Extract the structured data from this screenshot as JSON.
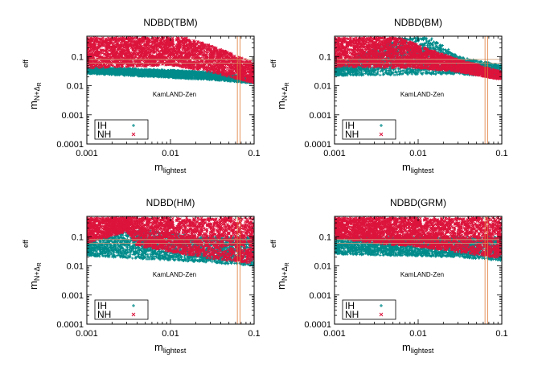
{
  "chart_data": [
    {
      "type": "scatter",
      "title": "NDBD(TBM)",
      "xlabel_main": "m",
      "xlabel_sub": "lightest",
      "ylabel_main": "m",
      "ylabel_sub": "N+Δ_R",
      "ylabel_sup": "eff",
      "x_scale": "log",
      "y_scale": "log",
      "xlim": [
        0.001,
        0.1
      ],
      "ylim": [
        0.0001,
        0.5
      ],
      "x_ticks": [
        "0.001",
        "0.01",
        "0.1"
      ],
      "y_ticks": [
        "0.0001",
        "0.001",
        "0.01",
        "0.1"
      ],
      "annotation": "KamLAND-Zen",
      "legend_position": "bottom-left",
      "series": [
        {
          "name": "IH",
          "color": "#008b8b",
          "marker": "+",
          "band_low": [
            [
              0.001,
              0.026
            ],
            [
              0.03,
              0.016
            ],
            [
              0.1,
              0.012
            ]
          ],
          "band_high": [
            [
              0.001,
              0.045
            ],
            [
              0.03,
              0.03
            ],
            [
              0.1,
              0.02
            ]
          ]
        },
        {
          "name": "NH",
          "color": "#dc143c",
          "marker": "×",
          "band_low": [
            [
              0.001,
              0.04
            ],
            [
              0.01,
              0.05
            ],
            [
              0.03,
              0.03
            ],
            [
              0.1,
              0.012
            ]
          ],
          "band_high": [
            [
              0.001,
              0.45
            ],
            [
              0.015,
              0.45
            ],
            [
              0.03,
              0.25
            ],
            [
              0.1,
              0.06
            ]
          ]
        }
      ],
      "reference_lines_y": [
        0.08,
        0.06
      ],
      "reference_lines_x": [
        0.063,
        0.068
      ]
    },
    {
      "type": "scatter",
      "title": "NDBD(BM)",
      "xlabel_main": "m",
      "xlabel_sub": "lightest",
      "ylabel_main": "m",
      "ylabel_sub": "N+Δ_R",
      "ylabel_sup": "eff",
      "x_scale": "log",
      "y_scale": "log",
      "xlim": [
        0.001,
        0.1
      ],
      "ylim": [
        0.0001,
        0.5
      ],
      "x_ticks": [
        "0.001",
        "0.01",
        "0.1"
      ],
      "y_ticks": [
        "0.0001",
        "0.001",
        "0.01",
        "0.1"
      ],
      "annotation": "KamLAND-Zen",
      "legend_position": "bottom-left",
      "series": [
        {
          "name": "IH",
          "color": "#008b8b",
          "marker": "+",
          "band_low": [
            [
              0.001,
              0.022
            ],
            [
              0.03,
              0.025
            ],
            [
              0.1,
              0.02
            ]
          ],
          "band_high": [
            [
              0.001,
              0.045
            ],
            [
              0.006,
              0.45
            ],
            [
              0.015,
              0.45
            ],
            [
              0.03,
              0.1
            ],
            [
              0.1,
              0.05
            ]
          ]
        },
        {
          "name": "NH",
          "color": "#dc143c",
          "marker": "×",
          "band_low": [
            [
              0.001,
              0.045
            ],
            [
              0.01,
              0.04
            ],
            [
              0.03,
              0.03
            ],
            [
              0.1,
              0.016
            ]
          ],
          "band_high": [
            [
              0.001,
              0.45
            ],
            [
              0.006,
              0.45
            ],
            [
              0.01,
              0.25
            ],
            [
              0.03,
              0.08
            ],
            [
              0.1,
              0.03
            ]
          ]
        }
      ],
      "reference_lines_y": [
        0.08,
        0.06
      ],
      "reference_lines_x": [
        0.063,
        0.068
      ]
    },
    {
      "type": "scatter",
      "title": "NDBD(HM)",
      "xlabel_main": "m",
      "xlabel_sub": "lightest",
      "ylabel_main": "m",
      "ylabel_sub": "N+Δ_R",
      "ylabel_sup": "eff",
      "x_scale": "log",
      "y_scale": "log",
      "xlim": [
        0.001,
        0.1
      ],
      "ylim": [
        0.0001,
        0.5
      ],
      "x_ticks": [
        "0.001",
        "0.01",
        "0.1"
      ],
      "y_ticks": [
        "0.0001",
        "0.001",
        "0.01",
        "0.1"
      ],
      "annotation": "KamLAND-Zen",
      "legend_position": "bottom-left",
      "series": [
        {
          "name": "IH",
          "color": "#008b8b",
          "marker": "+",
          "band_low": [
            [
              0.001,
              0.022
            ],
            [
              0.03,
              0.013
            ],
            [
              0.1,
              0.01
            ]
          ],
          "band_high": [
            [
              0.001,
              0.06
            ],
            [
              0.003,
              0.2
            ],
            [
              0.03,
              0.1
            ],
            [
              0.1,
              0.1
            ]
          ]
        },
        {
          "name": "NH",
          "color": "#dc143c",
          "marker": "×",
          "band_low": [
            [
              0.001,
              0.06
            ],
            [
              0.003,
              0.15
            ],
            [
              0.004,
              0.05
            ],
            [
              0.01,
              0.03
            ],
            [
              0.03,
              0.018
            ],
            [
              0.1,
              0.012
            ]
          ],
          "band_high": [
            [
              0.001,
              0.45
            ],
            [
              0.1,
              0.45
            ]
          ]
        }
      ],
      "reference_lines_y": [
        0.08,
        0.06
      ],
      "reference_lines_x": [
        0.063,
        0.068
      ]
    },
    {
      "type": "scatter",
      "title": "NDBD(GRM)",
      "xlabel_main": "m",
      "xlabel_sub": "lightest",
      "ylabel_main": "m",
      "ylabel_sub": "N+Δ_R",
      "ylabel_sup": "eff",
      "x_scale": "log",
      "y_scale": "log",
      "xlim": [
        0.001,
        0.1
      ],
      "ylim": [
        0.0001,
        0.5
      ],
      "x_ticks": [
        "0.001",
        "0.01",
        "0.1"
      ],
      "y_ticks": [
        "0.0001",
        "0.001",
        "0.01",
        "0.1"
      ],
      "annotation": "KamLAND-Zen",
      "legend_position": "bottom-left",
      "series": [
        {
          "name": "IH",
          "color": "#008b8b",
          "marker": "+",
          "band_low": [
            [
              0.001,
              0.025
            ],
            [
              0.03,
              0.02
            ],
            [
              0.1,
              0.015
            ]
          ],
          "band_high": [
            [
              0.001,
              0.1
            ],
            [
              0.1,
              0.1
            ]
          ]
        },
        {
          "name": "NH",
          "color": "#dc143c",
          "marker": "×",
          "band_low": [
            [
              0.001,
              0.09
            ],
            [
              0.003,
              0.06
            ],
            [
              0.01,
              0.045
            ],
            [
              0.03,
              0.03
            ],
            [
              0.1,
              0.018
            ]
          ],
          "band_high": [
            [
              0.001,
              0.45
            ],
            [
              0.1,
              0.45
            ]
          ]
        }
      ],
      "reference_lines_y": [
        0.08,
        0.06
      ],
      "reference_lines_x": [
        0.063,
        0.068
      ]
    }
  ],
  "colors": {
    "ih": "#008b8b",
    "nh": "#dc143c",
    "kamland_lines": "#d2a07a",
    "vertical_lines": "#e07b39"
  }
}
